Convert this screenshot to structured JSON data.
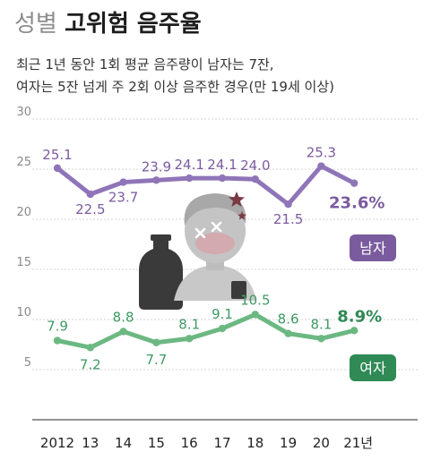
{
  "header": {
    "title_light": "성별",
    "title_bold": "고위험 음주율",
    "subtitle_line1": "최근 1년 동안 1회 평균 음주량이 남자는 7잔,",
    "subtitle_line2": "여자는 5잔 넘게 주 2회 이상 음주한 경우(만 19세 이상)"
  },
  "colors": {
    "male": "#8f75b8",
    "male_label": "#7b5ba0",
    "female": "#6cb882",
    "female_label": "#3e9a63",
    "male_badge": "#7a5c9e",
    "female_badge": "#2f8a55"
  },
  "chart_data": {
    "type": "line",
    "categories": [
      "2012",
      "13",
      "14",
      "15",
      "16",
      "17",
      "18",
      "19",
      "20",
      "21년"
    ],
    "ylim": [
      0,
      30
    ],
    "yticks": [
      5,
      10,
      15,
      20,
      25,
      30
    ],
    "grid": true,
    "series": [
      {
        "name": "남자",
        "values": [
          25.1,
          22.5,
          23.7,
          23.9,
          24.1,
          24.1,
          24.0,
          21.5,
          25.3,
          23.6
        ],
        "labels": [
          "25.1",
          "22.5",
          "23.7",
          "23.9",
          "24.1",
          "24.1",
          "24.0",
          "21.5",
          "25.3",
          "23.6%"
        ]
      },
      {
        "name": "여자",
        "values": [
          7.9,
          7.2,
          8.8,
          7.7,
          8.1,
          9.1,
          10.5,
          8.6,
          8.1,
          8.9
        ],
        "labels": [
          "7.9",
          "7.2",
          "8.8",
          "7.7",
          "8.1",
          "9.1",
          "10.5",
          "8.6",
          "8.1",
          "8.9%"
        ]
      }
    ]
  }
}
